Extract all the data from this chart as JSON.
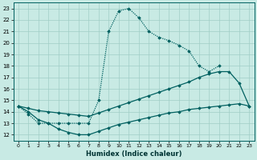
{
  "xlabel": "Humidex (Indice chaleur)",
  "xlim": [
    -0.5,
    23.5
  ],
  "ylim": [
    11.5,
    23.5
  ],
  "xticks": [
    0,
    1,
    2,
    3,
    4,
    5,
    6,
    7,
    8,
    9,
    10,
    11,
    12,
    13,
    14,
    15,
    16,
    17,
    18,
    19,
    20,
    21,
    22,
    23
  ],
  "yticks": [
    12,
    13,
    14,
    15,
    16,
    17,
    18,
    19,
    20,
    21,
    22,
    23
  ],
  "bg_color": "#c8eae4",
  "grid_color": "#a0cec6",
  "line_color": "#006060",
  "line1_x": [
    0,
    1,
    2,
    3,
    4,
    5,
    6,
    7,
    8,
    9,
    10,
    11,
    12,
    13,
    14,
    15,
    16,
    17,
    18,
    19,
    20
  ],
  "line1_y": [
    14.5,
    13.8,
    13.0,
    13.0,
    13.0,
    13.0,
    13.0,
    13.0,
    15.0,
    21.0,
    22.8,
    23.0,
    22.2,
    21.0,
    20.5,
    20.2,
    19.8,
    19.3,
    18.0,
    17.5,
    18.0
  ],
  "line2_x": [
    0,
    1,
    2,
    3,
    4,
    5,
    6,
    7,
    8,
    9,
    10,
    11,
    12,
    13,
    14,
    15,
    16,
    17,
    18,
    19,
    20,
    21,
    22,
    23
  ],
  "line2_y": [
    14.5,
    14.3,
    14.1,
    14.0,
    13.9,
    13.8,
    13.7,
    13.6,
    13.9,
    14.2,
    14.5,
    14.8,
    15.1,
    15.4,
    15.7,
    16.0,
    16.3,
    16.6,
    17.0,
    17.3,
    17.5,
    17.5,
    16.5,
    14.5
  ],
  "line3_x": [
    0,
    1,
    2,
    3,
    4,
    5,
    6,
    7,
    8,
    9,
    10,
    11,
    12,
    13,
    14,
    15,
    16,
    17,
    18,
    19,
    20,
    21,
    22,
    23
  ],
  "line3_y": [
    14.5,
    14.0,
    13.3,
    13.0,
    12.5,
    12.2,
    12.0,
    12.0,
    12.3,
    12.6,
    12.9,
    13.1,
    13.3,
    13.5,
    13.7,
    13.9,
    14.0,
    14.2,
    14.3,
    14.4,
    14.5,
    14.6,
    14.7,
    14.5
  ]
}
